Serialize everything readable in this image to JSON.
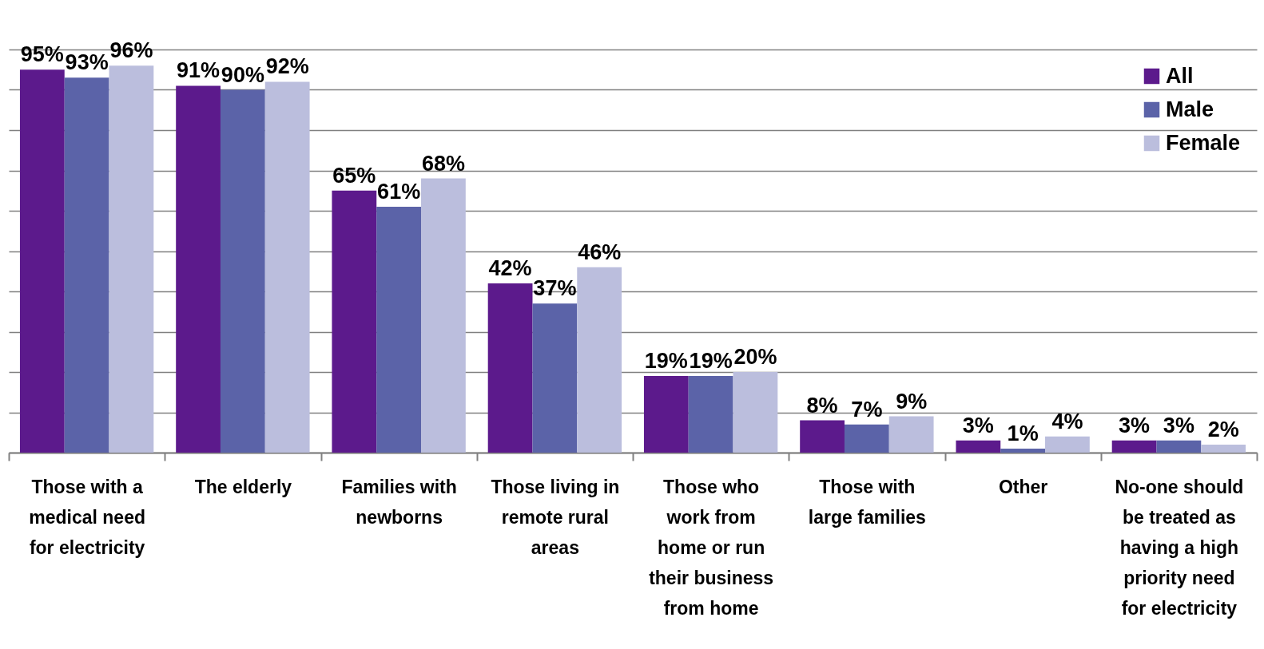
{
  "chart_data": {
    "type": "bar",
    "categories": [
      "Those with a medical need for electricity",
      "The elderly",
      "Families with newborns",
      "Those living in remote rural areas",
      "Those who work from home or run their business from home",
      "Those with large families",
      "Other",
      "No-one should be treated as having a high priority need for electricity"
    ],
    "series": [
      {
        "name": "All",
        "color": "#5c1a8c",
        "values": [
          95,
          91,
          65,
          42,
          19,
          8,
          3,
          3
        ],
        "value_labels": [
          "95%",
          "91%",
          "65%",
          "42%",
          "19%",
          "8%",
          "3%",
          "3%"
        ]
      },
      {
        "name": "Male",
        "color": "#5b63a8",
        "values": [
          93,
          90,
          61,
          37,
          19,
          7,
          1,
          3
        ],
        "value_labels": [
          "93%",
          "90%",
          "61%",
          "37%",
          "19%",
          "7%",
          "1%",
          "3%"
        ]
      },
      {
        "name": "Female",
        "color": "#bbbedd",
        "values": [
          96,
          92,
          68,
          46,
          20,
          9,
          4,
          2
        ],
        "value_labels": [
          "96%",
          "92%",
          "68%",
          "46%",
          "20%",
          "9%",
          "4%",
          "2%"
        ]
      }
    ],
    "grid": "y",
    "tick_labels": "x",
    "legend": "top right"
  }
}
